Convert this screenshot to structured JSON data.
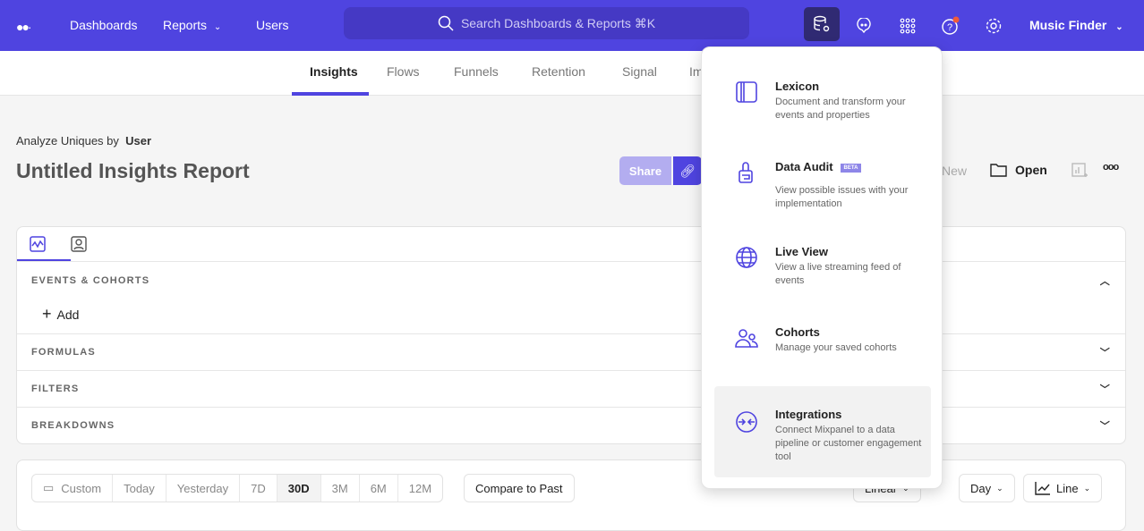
{
  "topbar": {
    "nav": [
      "Dashboards",
      "Reports",
      "Users"
    ],
    "search_placeholder": "Search Dashboards & Reports ⌘K",
    "project": "Music Finder",
    "icons": [
      "data-management-icon",
      "chat-icon",
      "apps-grid-icon",
      "help-icon",
      "settings-icon"
    ],
    "accent": "#4f44e0",
    "notification_color": "#f05a3a"
  },
  "tabs": [
    "Insights",
    "Flows",
    "Funnels",
    "Retention",
    "Signal",
    "Im"
  ],
  "header": {
    "analyze_label": "Analyze Uniques by",
    "analyze_value": "User",
    "title": "Untitled Insights Report",
    "share": "Share",
    "new": "New",
    "open": "Open"
  },
  "query": {
    "sections": [
      "EVENTS & COHORTS",
      "FORMULAS",
      "FILTERS",
      "BREAKDOWNS"
    ],
    "add": "Add"
  },
  "controls": {
    "ranges": [
      "Custom",
      "Today",
      "Yesterday",
      "7D",
      "30D",
      "3M",
      "6M",
      "12M"
    ],
    "selected": "30D",
    "compare": "Compare to Past",
    "scale": "Linear",
    "interval": "Day",
    "chart_type": "Line"
  },
  "menu": [
    {
      "title": "Lexicon",
      "desc": "Document and transform your events and properties"
    },
    {
      "title": "Data Audit",
      "badge": "BETA",
      "desc": "View possible issues with your implementation"
    },
    {
      "title": "Live View",
      "desc": "View a live streaming feed of events"
    },
    {
      "title": "Cohorts",
      "desc": "Manage your saved cohorts"
    },
    {
      "title": "Integrations",
      "desc": "Connect Mixpanel to a data pipeline or customer engagement tool"
    }
  ]
}
